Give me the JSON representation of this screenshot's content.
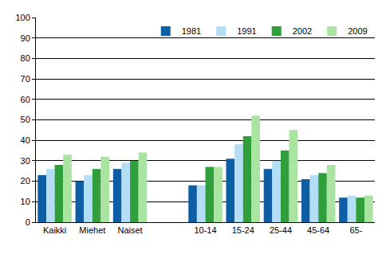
{
  "chart_data": {
    "type": "bar",
    "categories": [
      "Kaikki",
      "Miehet",
      "Naiset",
      null,
      "10-14",
      "15-24",
      "25-44",
      "45-64",
      "65-"
    ],
    "series": [
      {
        "name": "1981",
        "color": "#0e5ea6",
        "values": [
          23,
          20,
          26,
          null,
          18,
          31,
          26,
          21,
          12
        ]
      },
      {
        "name": "1991",
        "color": "#b3def5",
        "values": [
          26,
          23,
          29,
          null,
          18,
          38,
          30,
          23,
          13
        ]
      },
      {
        "name": "2002",
        "color": "#2f9e3b",
        "values": [
          28,
          26,
          30,
          null,
          27,
          42,
          35,
          24,
          12
        ]
      },
      {
        "name": "2009",
        "color": "#a9e5a1",
        "values": [
          33,
          32,
          34,
          null,
          27,
          52,
          45,
          28,
          13
        ]
      }
    ],
    "ylim": [
      0,
      100
    ],
    "yticks": [
      0,
      10,
      20,
      30,
      40,
      50,
      60,
      70,
      80,
      90,
      100
    ],
    "grid": true,
    "legend": "top-right"
  }
}
